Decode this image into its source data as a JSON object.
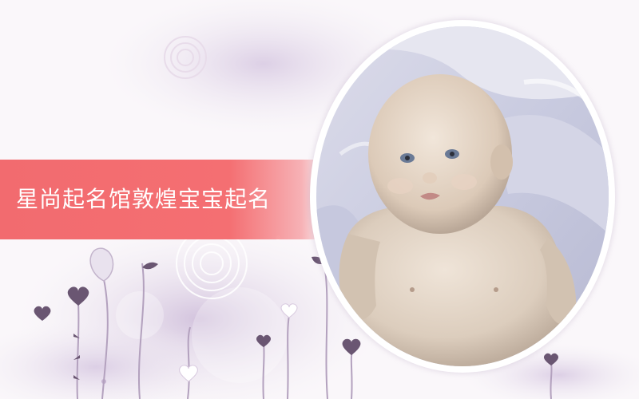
{
  "banner": {
    "title": "星尚起名馆敦煌宝宝起名",
    "color": "#f26b6f"
  },
  "photo": {
    "subject": "baby-photo"
  },
  "decor": {
    "icons": [
      "heart-flower-icon",
      "bubble-ring-icon"
    ]
  }
}
